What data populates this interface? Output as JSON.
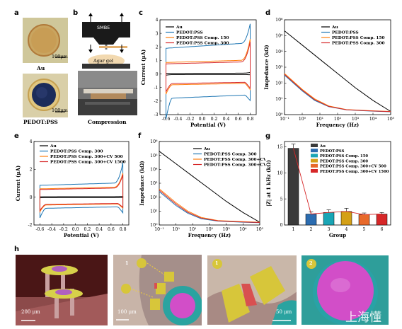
{
  "panels": {
    "a": {
      "label": "a",
      "top_caption": "Au",
      "bottom_caption": "PEDOT:PSS",
      "scale_bar": "100μm"
    },
    "b": {
      "label": "b",
      "device_label": "SMBE",
      "gel_label": "Agar gel",
      "caption": "Compression"
    },
    "c": {
      "label": "c"
    },
    "d": {
      "label": "d"
    },
    "e": {
      "label": "e"
    },
    "f": {
      "label": "f"
    },
    "g": {
      "label": "g"
    },
    "h": {
      "label": "h",
      "scale1": "200 μm",
      "scale2": "100 μm",
      "scale3": "50 μm",
      "markers": [
        "1",
        "2",
        "1",
        "2"
      ],
      "watermark": "上海懂"
    }
  },
  "colors": {
    "au": "#000000",
    "pedot": "#1f77b4",
    "c150": "#ff7f0e",
    "c300": "#d62728",
    "cv500": "#ff7f0e",
    "cv1500": "#d62728"
  },
  "chart_data": [
    {
      "panel": "c",
      "type": "line",
      "xlabel": "Potential (V)",
      "ylabel": "Current (μA)",
      "xlim": [
        -0.7,
        0.9
      ],
      "ylim": [
        -3,
        4
      ],
      "xticks": [
        "-0.6",
        "-0.4",
        "-0.2",
        "0.0",
        "0.2",
        "0.4",
        "0.6",
        "0.8"
      ],
      "yticks": [
        "-3",
        "-2",
        "-1",
        "0",
        "1",
        "2",
        "3",
        "4"
      ],
      "series": [
        {
          "name": "Au",
          "color_key": "au",
          "shape": "cv",
          "amp": 0.05,
          "peak": 0.1
        },
        {
          "name": "PEDOT:PSS",
          "color_key": "pedot",
          "shape": "cv",
          "amp": 1.9,
          "peak": 3.3
        },
        {
          "name": "PEDOT:PSS Comp. 150",
          "color_key": "c150",
          "shape": "cv",
          "amp": 0.85,
          "peak": 2.4
        },
        {
          "name": "PEDOT:PSS Comp. 300",
          "color_key": "c300",
          "shape": "cv",
          "amp": 0.75,
          "peak": 2.2
        }
      ]
    },
    {
      "panel": "d",
      "type": "line",
      "xlabel": "Frequency (Hz)",
      "ylabel": "Impedance (kΩ)",
      "xlim_log": [
        -1,
        5
      ],
      "ylim_log": [
        0,
        6
      ],
      "xticks": [
        "10⁻¹",
        "10⁰",
        "10¹",
        "10²",
        "10³",
        "10⁴",
        "10⁵"
      ],
      "yticks": [
        "10⁰",
        "10¹",
        "10²",
        "10³",
        "10⁴",
        "10⁵",
        "10⁶"
      ],
      "series": [
        {
          "name": "Au",
          "color_key": "au",
          "points": [
            [
              -1,
              5.3
            ],
            [
              0,
              4.4
            ],
            [
              1,
              3.5
            ],
            [
              2,
              2.6
            ],
            [
              3,
              1.7
            ],
            [
              4,
              0.9
            ],
            [
              5,
              0.2
            ]
          ]
        },
        {
          "name": "PEDOT:PSS",
          "color_key": "pedot",
          "points": [
            [
              -1,
              2.5
            ],
            [
              0,
              1.5
            ],
            [
              0.7,
              0.9
            ],
            [
              1.5,
              0.5
            ],
            [
              2.5,
              0.3
            ],
            [
              4,
              0.22
            ],
            [
              5,
              0.18
            ]
          ]
        },
        {
          "name": "PEDOT:PSS Comp. 150",
          "color_key": "c150",
          "points": [
            [
              -1,
              2.6
            ],
            [
              0,
              1.6
            ],
            [
              0.7,
              1.0
            ],
            [
              1.5,
              0.55
            ],
            [
              2.5,
              0.32
            ],
            [
              4,
              0.24
            ],
            [
              5,
              0.2
            ]
          ]
        },
        {
          "name": "PEDOT:PSS Comp. 300",
          "color_key": "c300",
          "points": [
            [
              -1,
              2.55
            ],
            [
              0,
              1.55
            ],
            [
              0.7,
              0.95
            ],
            [
              1.5,
              0.52
            ],
            [
              2.5,
              0.31
            ],
            [
              4,
              0.23
            ],
            [
              5,
              0.19
            ]
          ]
        }
      ]
    },
    {
      "panel": "e",
      "type": "line",
      "xlabel": "Potential (V)",
      "ylabel": "Current (μA)",
      "xlim": [
        -0.7,
        0.9
      ],
      "ylim": [
        -2,
        4
      ],
      "xticks": [
        "-0.6",
        "-0.4",
        "-0.2",
        "0.0",
        "0.2",
        "0.4",
        "0.6",
        "0.8"
      ],
      "yticks": [
        "-2",
        "0",
        "2",
        "4"
      ],
      "series": [
        {
          "name": "Au",
          "color_key": "au",
          "shape": "cv",
          "amp": 0.03,
          "peak": 0.05
        },
        {
          "name": "PEDOT:PSS Comp. 300",
          "color_key": "pedot",
          "shape": "cv",
          "amp": 0.85,
          "peak": 2.3
        },
        {
          "name": "PEDOT:PSS Comp. 300+CV 500",
          "color_key": "cv500",
          "shape": "cv",
          "amp": 0.6,
          "peak": 1.6
        },
        {
          "name": "PEDOT:PSS Comp. 300+CV 1500",
          "color_key": "cv1500",
          "shape": "cv",
          "amp": 0.55,
          "peak": 1.5
        }
      ]
    },
    {
      "panel": "f",
      "type": "line",
      "xlabel": "Frequency (Hz)",
      "ylabel": "Impedance (kΩ)",
      "xlim_log": [
        -1,
        5
      ],
      "ylim_log": [
        0,
        6
      ],
      "xticks": [
        "10⁻¹",
        "10⁰",
        "10¹",
        "10²",
        "10³",
        "10⁴",
        "10⁵"
      ],
      "yticks": [
        "10⁰",
        "10¹",
        "10²",
        "10³",
        "10⁴",
        "10⁵",
        "10⁶"
      ],
      "series": [
        {
          "name": "Au",
          "color_key": "au",
          "points": [
            [
              -1,
              5.3
            ],
            [
              0,
              4.4
            ],
            [
              1,
              3.5
            ],
            [
              2,
              2.6
            ],
            [
              3,
              1.7
            ],
            [
              4,
              0.9
            ],
            [
              5,
              0.2
            ]
          ]
        },
        {
          "name": "PEDOT:PSS Comp. 300",
          "color_key": "pedot",
          "points": [
            [
              -1,
              2.4
            ],
            [
              0,
              1.4
            ],
            [
              0.7,
              0.85
            ],
            [
              1.5,
              0.45
            ],
            [
              2.5,
              0.28
            ],
            [
              4,
              0.2
            ],
            [
              5,
              0.17
            ]
          ]
        },
        {
          "name": "PEDOT:PSS Comp. 300+CV 500",
          "color_key": "cv500",
          "points": [
            [
              -1,
              2.6
            ],
            [
              0,
              1.6
            ],
            [
              0.7,
              1.0
            ],
            [
              1.5,
              0.55
            ],
            [
              2.5,
              0.32
            ],
            [
              4,
              0.24
            ],
            [
              5,
              0.2
            ]
          ]
        },
        {
          "name": "PEDOT:PSS Comp. 300+CV 1500",
          "color_key": "cv1500",
          "points": [
            [
              -1,
              2.5
            ],
            [
              0,
              1.5
            ],
            [
              0.7,
              0.92
            ],
            [
              1.5,
              0.5
            ],
            [
              2.5,
              0.3
            ],
            [
              4,
              0.22
            ],
            [
              5,
              0.18
            ]
          ]
        }
      ]
    },
    {
      "panel": "g",
      "type": "bar",
      "xlabel": "Group",
      "ylabel": "|Z| at 1 kHz (kΩ)",
      "ylim": [
        0,
        16
      ],
      "yticks": [
        "0",
        "5",
        "10",
        "15"
      ],
      "categories": [
        "1",
        "2",
        "3",
        "4",
        "5",
        "6"
      ],
      "values": [
        14.7,
        2.1,
        2.4,
        2.6,
        2.0,
        2.1
      ],
      "errors": [
        0.8,
        0.4,
        0.5,
        0.6,
        0.3,
        0.3
      ],
      "bar_colors": [
        "#3a3a3a",
        "#2b6cb0",
        "#1aa5b5",
        "#d4a017",
        "#e8692a",
        "#d62728"
      ],
      "legend": [
        "Au",
        "PEDOT:PSS",
        "PEDOT:PSS Comp. 150",
        "PEDOT:PSS Comp. 300",
        "PEDOT:PSS Comp. 300+CV 500",
        "PEDOT:PSS Comp. 300+CV 1500"
      ]
    }
  ]
}
